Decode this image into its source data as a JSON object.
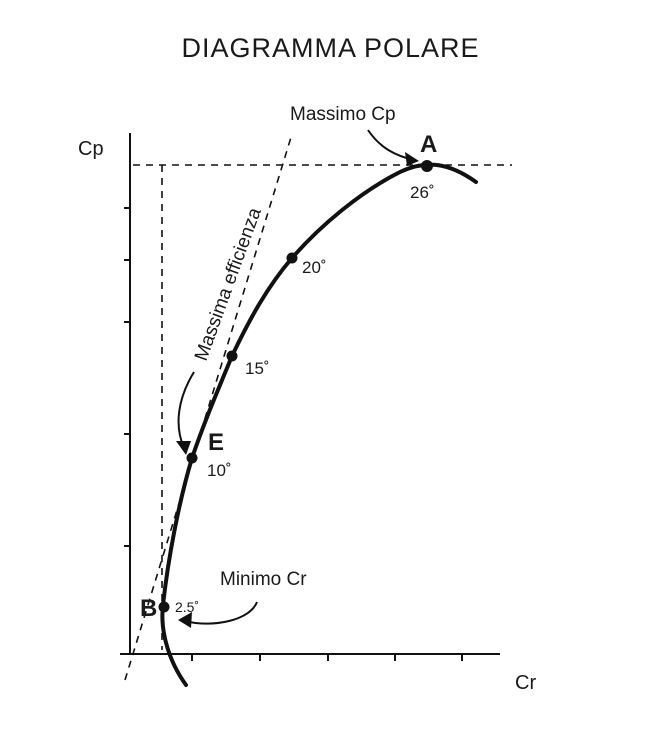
{
  "title": "DIAGRAMMA  POLARE",
  "axes": {
    "y_label": "Cp",
    "x_label": "Cr"
  },
  "annotations": {
    "max_cp": "Massimo  Cp",
    "min_cr": "Minimo  Cr",
    "max_efficiency": "Massima  efficienza"
  },
  "points": [
    {
      "letter": "A",
      "angle": "26˚"
    },
    {
      "letter": "",
      "angle": "20˚"
    },
    {
      "letter": "",
      "angle": "15˚"
    },
    {
      "letter": "E",
      "angle": "10˚"
    },
    {
      "letter": "B",
      "angle": "2.5˚"
    }
  ]
}
